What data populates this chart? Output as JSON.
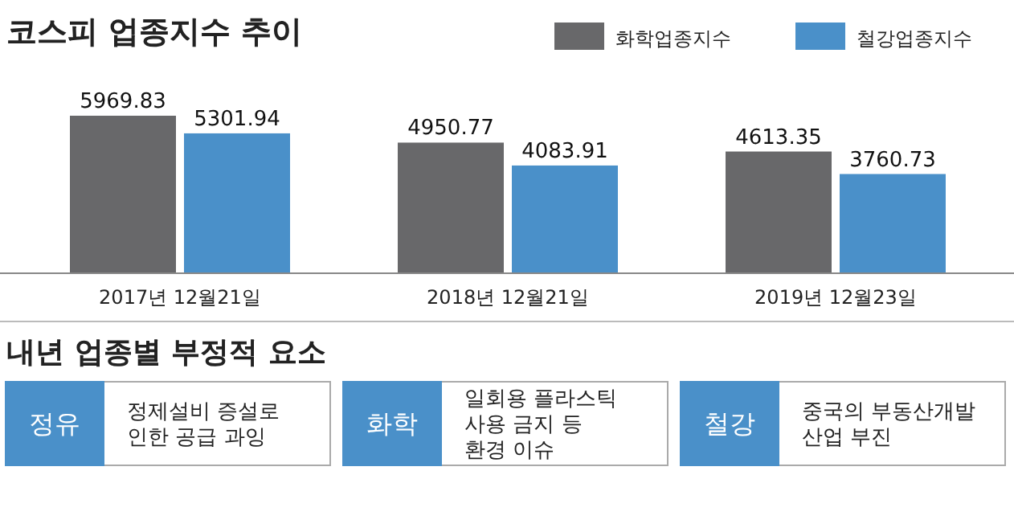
{
  "chart_data": [
    {
      "type": "bar",
      "title": "코스피 업종지수 추이",
      "categories": [
        "2017년 12월21일",
        "2018년 12월21일",
        "2019년 12월23일"
      ],
      "series": [
        {
          "name": "화학업종지수",
          "color": "#68686a",
          "values": [
            5969.83,
            4950.77,
            4613.35
          ]
        },
        {
          "name": "철강업종지수",
          "color": "#4a90c9",
          "values": [
            5301.94,
            4083.91,
            3760.73
          ]
        }
      ],
      "data_labels": true,
      "legend": "top right"
    },
    {
      "type": "other",
      "title": "내년 업종별 부정적 요소",
      "annotations": [
        "정유",
        "정제설비 증설로\n인한 공급 과잉",
        "화학",
        "일회용 플라스틱\n사용 금지 등\n환경 이슈",
        "철강",
        "중국의 부동산개발\n산업 부진"
      ]
    }
  ]
}
